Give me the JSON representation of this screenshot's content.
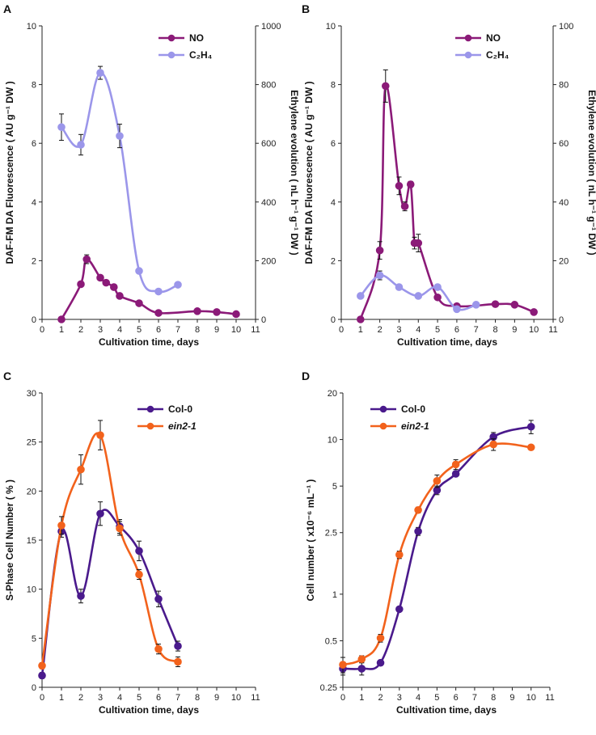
{
  "chart_data": [
    {
      "id": "A",
      "type": "line",
      "panel_letter": "A",
      "xlabel": "Cultivation time, days",
      "ylabel_left": "DAF-FM DA Fluorescence ( AU g⁻¹ DW )",
      "ylabel_right": "Ethylene evolution ( nL h⁻¹ g⁻¹ DW )",
      "xlim": [
        0,
        11
      ],
      "xticks": [
        "0",
        "1",
        "2",
        "3",
        "4",
        "5",
        "6",
        "7",
        "8",
        "9",
        "10",
        "11"
      ],
      "ylim_left": [
        0,
        10
      ],
      "yticks_left": [
        "0",
        "2",
        "4",
        "6",
        "8",
        "10"
      ],
      "ylim_right": [
        0,
        1000
      ],
      "yticks_right": [
        "0",
        "200",
        "400",
        "600",
        "800",
        "1000"
      ],
      "legend_position": "top-right",
      "series": [
        {
          "name": "NO",
          "axis": "left",
          "color": "#8b1a78",
          "x": [
            1,
            2,
            2.3,
            3,
            3.3,
            3.7,
            4,
            5,
            6,
            8,
            9,
            10
          ],
          "y": [
            0,
            1.2,
            2.05,
            1.42,
            1.25,
            1.1,
            0.8,
            0.55,
            0.22,
            0.28,
            0.25,
            0.18
          ],
          "err": [
            0,
            0.08,
            0.15,
            0.08,
            0.05,
            0.05,
            0.05,
            0.05,
            0.03,
            0.03,
            0.03,
            0.02
          ]
        },
        {
          "name": "C₂H₄",
          "axis": "right",
          "color": "#9b96ea",
          "x": [
            1,
            2,
            3,
            4,
            5,
            6,
            7
          ],
          "y": [
            655,
            595,
            840,
            625,
            165,
            95,
            118
          ],
          "err": [
            45,
            35,
            22,
            40,
            0,
            0,
            0
          ]
        }
      ]
    },
    {
      "id": "B",
      "type": "line",
      "panel_letter": "B",
      "xlabel": "Cultivation time, days",
      "ylabel_left": "DAF-FM DA Fluorescence ( AU g⁻¹ DW )",
      "ylabel_right": "Ethylene evolution ( nL h⁻¹ g⁻¹ DW )",
      "xlim": [
        0,
        11
      ],
      "xticks": [
        "0",
        "1",
        "2",
        "3",
        "4",
        "5",
        "6",
        "7",
        "8",
        "9",
        "10",
        "11"
      ],
      "ylim_left": [
        0,
        10
      ],
      "yticks_left": [
        "0",
        "2",
        "4",
        "6",
        "8",
        "10"
      ],
      "ylim_right": [
        0,
        100
      ],
      "yticks_right": [
        "0",
        "20",
        "40",
        "60",
        "80",
        "100"
      ],
      "legend_position": "top-right",
      "series": [
        {
          "name": "NO",
          "axis": "left",
          "color": "#8b1a78",
          "x": [
            1,
            2,
            2.3,
            3,
            3.3,
            3.6,
            3.8,
            4,
            5,
            6,
            8,
            9,
            10
          ],
          "y": [
            0,
            2.35,
            7.95,
            4.55,
            3.85,
            4.6,
            2.6,
            2.6,
            0.75,
            0.45,
            0.52,
            0.5,
            0.25
          ],
          "err": [
            0,
            0.3,
            0.55,
            0.3,
            0.15,
            0.1,
            0.2,
            0.3,
            0.05,
            0.05,
            0.03,
            0.03,
            0.03
          ]
        },
        {
          "name": "C₂H₄",
          "axis": "right",
          "color": "#9b96ea",
          "x": [
            1,
            2,
            3,
            4,
            5,
            6,
            7
          ],
          "y": [
            8,
            15,
            11,
            8,
            11,
            3.5,
            5
          ],
          "err": [
            0,
            1.5,
            0,
            0,
            0.8,
            0.5,
            0
          ]
        }
      ]
    },
    {
      "id": "C",
      "type": "line",
      "panel_letter": "C",
      "xlabel": "Cultivation time, days",
      "ylabel": "S-Phase Cell Number ( % )",
      "xlim": [
        0,
        11
      ],
      "xticks": [
        "0",
        "1",
        "2",
        "3",
        "4",
        "5",
        "6",
        "7",
        "8",
        "9",
        "10",
        "11"
      ],
      "ylim": [
        0,
        30
      ],
      "yticks": [
        "0",
        "5",
        "10",
        "15",
        "20",
        "25",
        "30"
      ],
      "legend_position": "top-right",
      "series": [
        {
          "name": "Col-0",
          "color": "#4a1a8c",
          "x": [
            0,
            1,
            2,
            3,
            4,
            5,
            6,
            7
          ],
          "y": [
            1.2,
            15.9,
            9.3,
            17.7,
            16.4,
            13.9,
            9.0,
            4.2
          ],
          "err": [
            0.3,
            0.6,
            0.7,
            1.2,
            0.7,
            1.0,
            0.8,
            0.5
          ]
        },
        {
          "name": "ein2-1",
          "color": "#f2621c",
          "x": [
            0,
            1,
            2,
            3,
            4,
            5,
            6,
            7
          ],
          "y": [
            2.2,
            16.5,
            22.2,
            25.7,
            16.2,
            11.5,
            3.9,
            2.6
          ],
          "err": [
            0.3,
            0.9,
            1.5,
            1.5,
            0.7,
            0.5,
            0.5,
            0.5
          ]
        }
      ]
    },
    {
      "id": "D",
      "type": "line",
      "panel_letter": "D",
      "xlabel": "Cultivation time, days",
      "ylabel": "Cell number ( x10⁻⁶ mL⁻¹ )",
      "yscale": "log",
      "xlim": [
        0,
        11
      ],
      "xticks": [
        "0",
        "1",
        "2",
        "3",
        "4",
        "5",
        "6",
        "7",
        "8",
        "9",
        "10",
        "11"
      ],
      "ylim": [
        0.25,
        20
      ],
      "yticks": [
        0.25,
        0.5,
        1,
        2.5,
        5,
        10,
        20
      ],
      "yticklabels": [
        "0.25",
        "0.5",
        "1",
        "2.5",
        "5",
        "10",
        "20"
      ],
      "legend_position": "top-left",
      "series": [
        {
          "name": "Col-0",
          "color": "#4a1a8c",
          "x": [
            0,
            1,
            2,
            3,
            4,
            5,
            6,
            8,
            10
          ],
          "y": [
            0.33,
            0.33,
            0.36,
            0.8,
            2.55,
            4.7,
            6.0,
            10.4,
            12.1
          ],
          "err": [
            0.03,
            0.03,
            0,
            0,
            0.15,
            0.3,
            0,
            0.7,
            1.2
          ]
        },
        {
          "name": "ein2-1",
          "color": "#f2621c",
          "x": [
            0,
            1,
            2,
            3,
            4,
            5,
            6,
            8,
            10
          ],
          "y": [
            0.35,
            0.38,
            0.52,
            1.8,
            3.5,
            5.4,
            6.9,
            9.3,
            8.9
          ],
          "err": [
            0.04,
            0.02,
            0.03,
            0.1,
            0.15,
            0.5,
            0.5,
            0.8,
            0
          ]
        }
      ]
    }
  ]
}
